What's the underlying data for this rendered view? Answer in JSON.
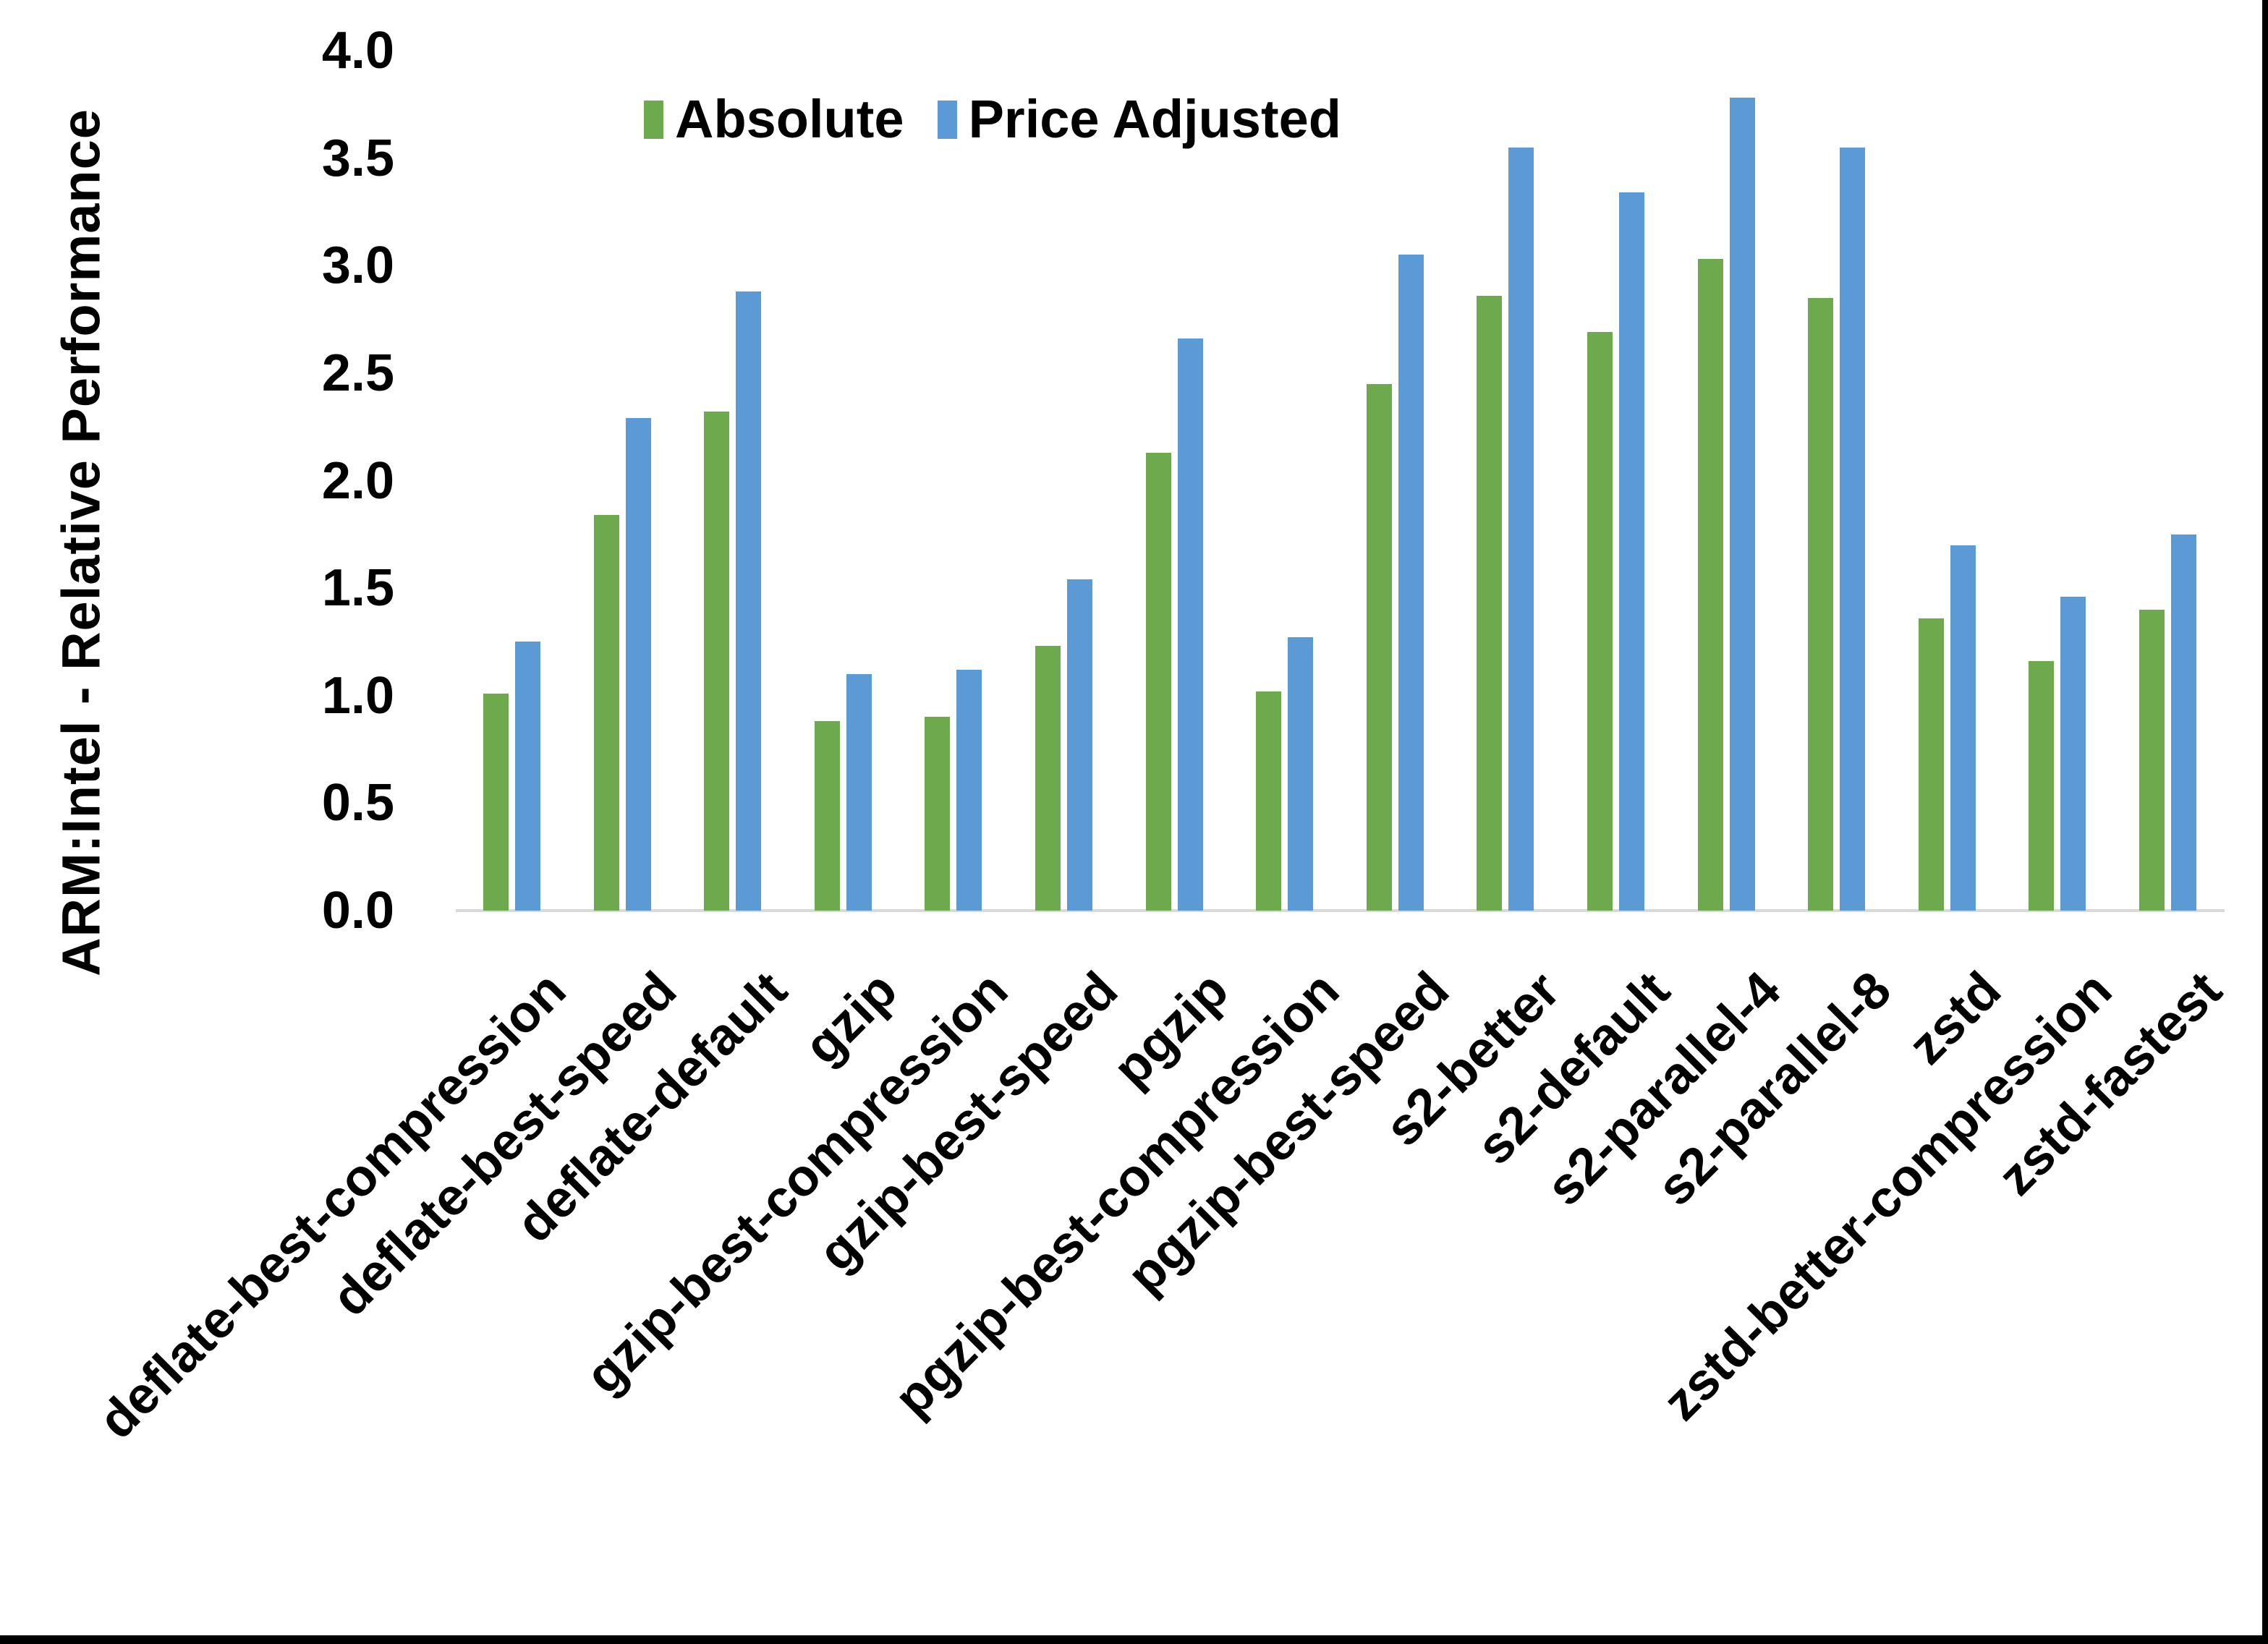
{
  "chart_data": {
    "type": "bar",
    "title": "",
    "ylabel": "ARM:Intel - Relative Performance",
    "xlabel": "",
    "ylim": [
      0.0,
      4.0
    ],
    "ytick_step": 0.5,
    "ytick_labels": [
      "0.0",
      "0.5",
      "1.0",
      "1.5",
      "2.0",
      "2.5",
      "3.0",
      "3.5",
      "4.0"
    ],
    "grid": false,
    "legend_position": "top-center",
    "categories": [
      "deflate-best-compression",
      "deflate-best-speed",
      "deflate-default",
      "gzip",
      "gzip-best-compression",
      "gzip-best-speed",
      "pgzip",
      "pgzip-best-compression",
      "pgzip-best-speed",
      "s2-better",
      "s2-default",
      "s2-parallel-4",
      "s2-parallel-8",
      "zstd",
      "zstd-better-compression",
      "zstd-fastest"
    ],
    "series": [
      {
        "name": "Absolute",
        "color": "#6DA94D",
        "values": [
          1.01,
          1.84,
          2.32,
          0.88,
          0.9,
          1.23,
          2.13,
          1.02,
          2.45,
          2.86,
          2.69,
          3.03,
          2.85,
          1.36,
          1.16,
          1.4
        ]
      },
      {
        "name": "Price Adjusted",
        "color": "#5B9AD4",
        "values": [
          1.25,
          2.29,
          2.88,
          1.1,
          1.12,
          1.54,
          2.66,
          1.27,
          3.05,
          3.55,
          3.34,
          3.78,
          3.55,
          1.7,
          1.46,
          1.75
        ]
      }
    ]
  },
  "colors": {
    "background": "#FFFFFF",
    "axis_line": "#D9D9D9",
    "text": "#000000",
    "frame_border": "#000000"
  }
}
